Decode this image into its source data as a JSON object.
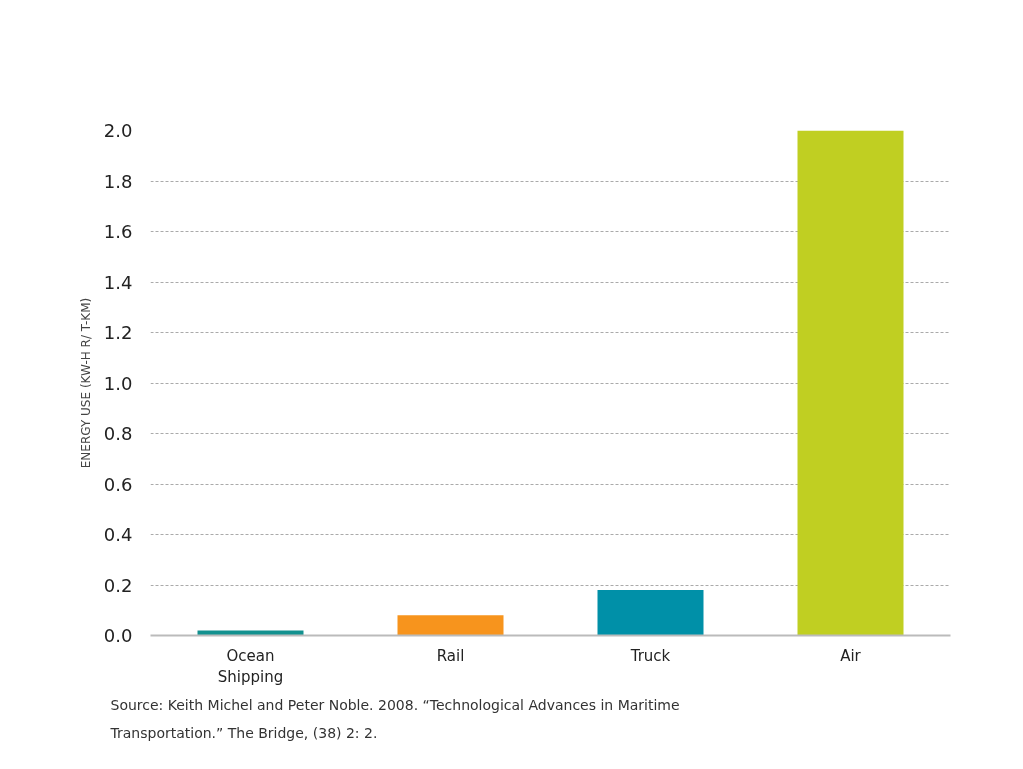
{
  "chart_data": {
    "type": "bar",
    "categories": [
      "Ocean\nShipping",
      "Rail",
      "Truck",
      "Air"
    ],
    "values": [
      0.02,
      0.08,
      0.18,
      2.0
    ],
    "colors": [
      "#12918f",
      "#f7941d",
      "#0090a8",
      "#c0cf22"
    ],
    "ylabel": "ENERGY USE (KW-H R/ T-KM)",
    "ylim": [
      0,
      2.0
    ],
    "yticks": [
      {
        "value": 0,
        "label": "0.0"
      },
      0.2,
      0.4,
      0.6,
      0.8,
      {
        "value": 1,
        "label": "1.0"
      },
      1.2,
      1.4,
      1.6,
      1.8,
      {
        "value": 2,
        "label": "2.0"
      }
    ],
    "grid": "y",
    "annotations": [
      "Source: Keith Michel and Peter Noble. 2008. “Technological Advances in Maritime Transportation.” The Bridge, (38) 2: 2."
    ]
  }
}
